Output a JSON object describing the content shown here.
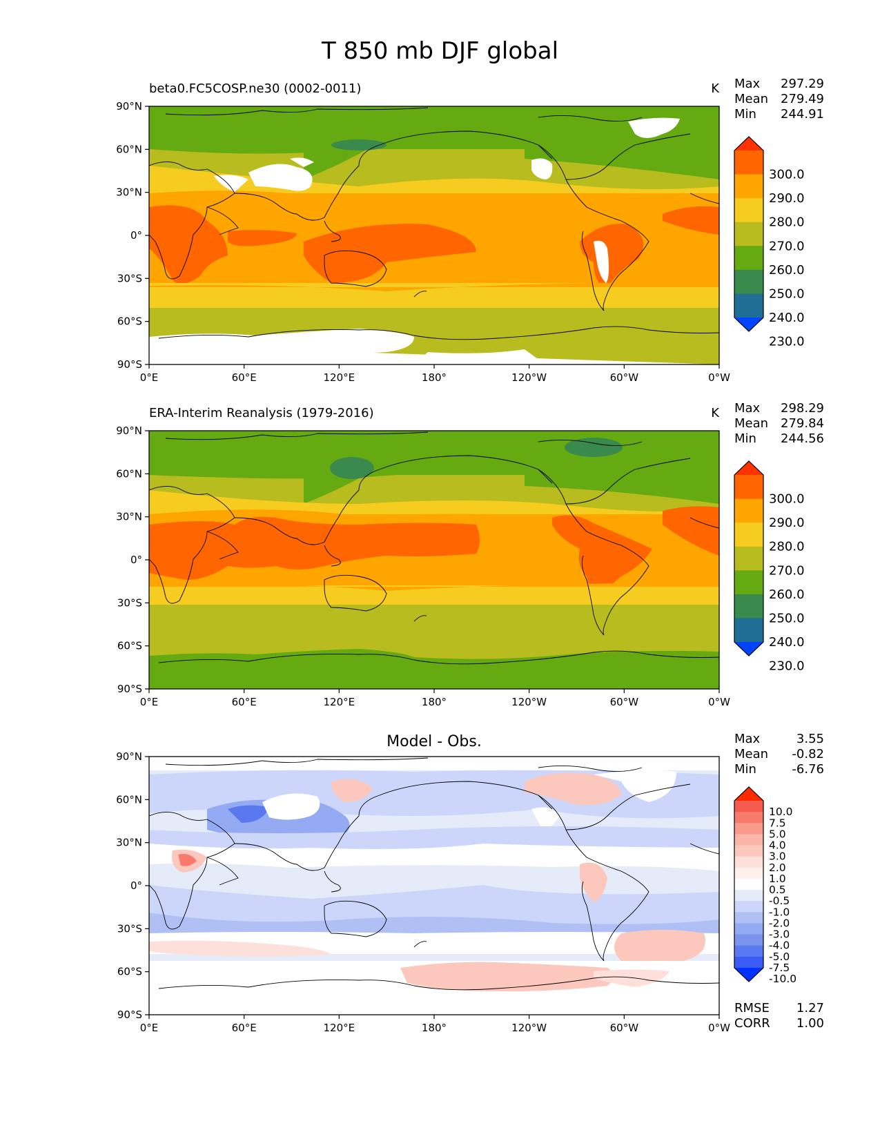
{
  "title": "T 850 mb DJF global",
  "lat_ticks": [
    "90°N",
    "60°N",
    "30°N",
    "0°",
    "30°S",
    "60°S",
    "90°S"
  ],
  "lon_ticks": [
    "0°E",
    "60°E",
    "120°E",
    "180°",
    "120°W",
    "60°W",
    "0°W"
  ],
  "panels": [
    {
      "id": "model",
      "left_title": "beta0.FC5COSP.ne30 (0002-0011)",
      "center_title": "",
      "units": "K",
      "stats": [
        {
          "label": "Max",
          "value": "297.29"
        },
        {
          "label": "Mean",
          "value": "279.49"
        },
        {
          "label": "Min",
          "value": "244.91"
        }
      ],
      "colorbar_labels": [
        "300.0",
        "290.0",
        "280.0",
        "270.0",
        "260.0",
        "250.0",
        "240.0",
        "230.0"
      ],
      "colorbar_colors": [
        "#ff3300",
        "#ff6600",
        "#ffa500",
        "#f5cc1f",
        "#b8bc1e",
        "#66aa11",
        "#3a8a4e",
        "#1e6e96",
        "#0044ff"
      ]
    },
    {
      "id": "obs",
      "left_title": "ERA-Interim Reanalysis (1979-2016)",
      "center_title": "",
      "units": "K",
      "stats": [
        {
          "label": "Max",
          "value": "298.29"
        },
        {
          "label": "Mean",
          "value": "279.84"
        },
        {
          "label": "Min",
          "value": "244.56"
        }
      ],
      "colorbar_labels": [
        "300.0",
        "290.0",
        "280.0",
        "270.0",
        "260.0",
        "250.0",
        "240.0",
        "230.0"
      ],
      "colorbar_colors": [
        "#ff3300",
        "#ff6600",
        "#ffa500",
        "#f5cc1f",
        "#b8bc1e",
        "#66aa11",
        "#3a8a4e",
        "#1e6e96",
        "#0044ff"
      ]
    },
    {
      "id": "diff",
      "left_title": "",
      "center_title": "Model - Obs.",
      "units": "",
      "stats": [
        {
          "label": "Max",
          "value": "3.55"
        },
        {
          "label": "Mean",
          "value": "-0.82"
        },
        {
          "label": "Min",
          "value": "-6.76"
        }
      ],
      "bottom_stats": [
        {
          "label": "RMSE",
          "value": "1.27"
        },
        {
          "label": "CORR",
          "value": "1.00"
        }
      ],
      "colorbar_labels": [
        "10.0",
        "7.5",
        "5.0",
        "4.0",
        "3.0",
        "2.0",
        "1.0",
        "0.5",
        "-0.5",
        "-1.0",
        "-2.0",
        "-3.0",
        "-4.0",
        "-5.0",
        "-7.5",
        "-10.0"
      ],
      "colorbar_colors": [
        "#ff2a00",
        "#f55a4e",
        "#f87a6c",
        "#fa9a8c",
        "#fbb4a8",
        "#fcc8be",
        "#fde0da",
        "#fff0ee",
        "#ffffff",
        "#e6ebfa",
        "#ccd6fa",
        "#b0c0f5",
        "#94aaf2",
        "#7a94ee",
        "#5a78f0",
        "#3a5cf5",
        "#0033ff"
      ]
    }
  ]
}
